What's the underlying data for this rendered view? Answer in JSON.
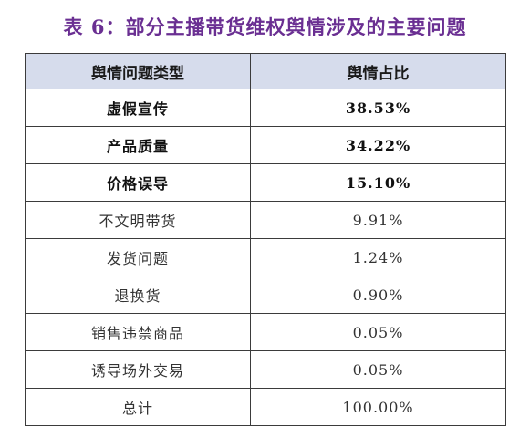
{
  "title": "表 6：部分主播带货维权舆情涉及的主要问题",
  "table": {
    "headers": [
      "舆情问题类型",
      "舆情占比"
    ],
    "rows": [
      {
        "type": "虚假宣传",
        "share": "38.53%",
        "bold": true
      },
      {
        "type": "产品质量",
        "share": "34.22%",
        "bold": true
      },
      {
        "type": "价格误导",
        "share": "15.10%",
        "bold": true
      },
      {
        "type": "不文明带货",
        "share": "9.91%",
        "bold": false
      },
      {
        "type": "发货问题",
        "share": "1.24%",
        "bold": false
      },
      {
        "type": "退换货",
        "share": "0.90%",
        "bold": false
      },
      {
        "type": "销售违禁商品",
        "share": "0.05%",
        "bold": false
      },
      {
        "type": "诱导场外交易",
        "share": "0.05%",
        "bold": false
      },
      {
        "type": "总计",
        "share": "100.00%",
        "bold": false
      }
    ]
  },
  "colors": {
    "title": "#6a2f92",
    "header_bg": "#d6dcec",
    "border": "#3b3b3b"
  }
}
